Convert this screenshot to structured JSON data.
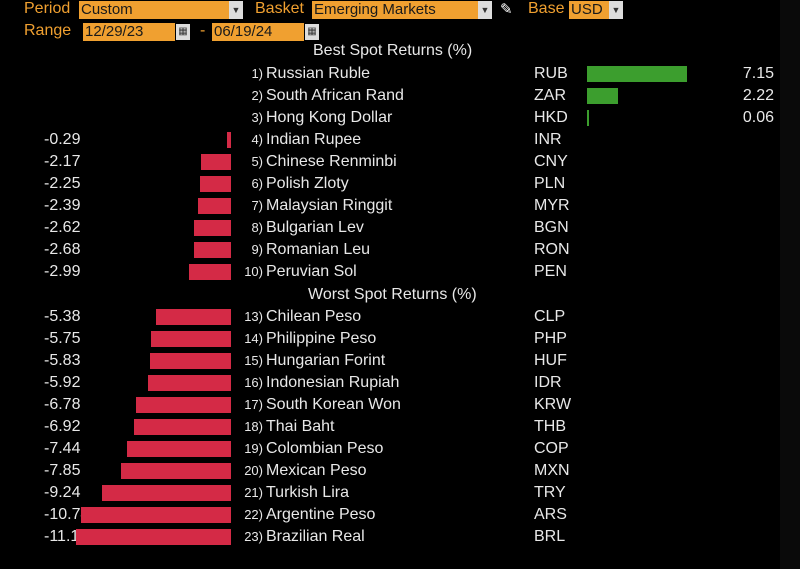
{
  "toolbar": {
    "period_label": "Period",
    "period_value": "Custom",
    "basket_label": "Basket",
    "basket_value": "Emerging Markets",
    "base_label": "Base",
    "base_value": "USD",
    "range_label": "Range",
    "range_start": "12/29/23",
    "range_sep": "-",
    "range_end": "06/19/24",
    "dropdown_icon": "dropdown-icon",
    "calendar_icon": "calendar-icon",
    "pencil_icon": "pencil-icon"
  },
  "best_header": "Best Spot Returns (%)",
  "worst_header": "Worst Spot Returns (%)",
  "colors": {
    "positive": "#3c9e2e",
    "negative": "#d42a46",
    "accent": "#f0a030"
  },
  "best": [
    {
      "rank": "1)",
      "name": "Russian Ruble",
      "code": "RUB",
      "value": 7.15,
      "label": "7.15"
    },
    {
      "rank": "2)",
      "name": "South African Rand",
      "code": "ZAR",
      "value": 2.22,
      "label": "2.22"
    },
    {
      "rank": "3)",
      "name": "Hong Kong Dollar",
      "code": "HKD",
      "value": 0.06,
      "label": "0.06"
    },
    {
      "rank": "4)",
      "name": "Indian Rupee",
      "code": "INR",
      "value": -0.29,
      "label": "-0.29"
    },
    {
      "rank": "5)",
      "name": "Chinese Renminbi",
      "code": "CNY",
      "value": -2.17,
      "label": "-2.17"
    },
    {
      "rank": "6)",
      "name": "Polish Zloty",
      "code": "PLN",
      "value": -2.25,
      "label": "-2.25"
    },
    {
      "rank": "7)",
      "name": "Malaysian Ringgit",
      "code": "MYR",
      "value": -2.39,
      "label": "-2.39"
    },
    {
      "rank": "8)",
      "name": "Bulgarian Lev",
      "code": "BGN",
      "value": -2.62,
      "label": "-2.62"
    },
    {
      "rank": "9)",
      "name": "Romanian Leu",
      "code": "RON",
      "value": -2.68,
      "label": "-2.68"
    },
    {
      "rank": "10)",
      "name": "Peruvian Sol",
      "code": "PEN",
      "value": -2.99,
      "label": "-2.99"
    }
  ],
  "worst": [
    {
      "rank": "13)",
      "name": "Chilean Peso",
      "code": "CLP",
      "value": -5.38,
      "label": "-5.38"
    },
    {
      "rank": "14)",
      "name": "Philippine Peso",
      "code": "PHP",
      "value": -5.75,
      "label": "-5.75"
    },
    {
      "rank": "15)",
      "name": "Hungarian Forint",
      "code": "HUF",
      "value": -5.83,
      "label": "-5.83"
    },
    {
      "rank": "16)",
      "name": "Indonesian Rupiah",
      "code": "IDR",
      "value": -5.92,
      "label": "-5.92"
    },
    {
      "rank": "17)",
      "name": "South Korean Won",
      "code": "KRW",
      "value": -6.78,
      "label": "-6.78"
    },
    {
      "rank": "18)",
      "name": "Thai Baht",
      "code": "THB",
      "value": -6.92,
      "label": "-6.92"
    },
    {
      "rank": "19)",
      "name": "Colombian Peso",
      "code": "COP",
      "value": -7.44,
      "label": "-7.44"
    },
    {
      "rank": "20)",
      "name": "Mexican Peso",
      "code": "MXN",
      "value": -7.85,
      "label": "-7.85"
    },
    {
      "rank": "21)",
      "name": "Turkish Lira",
      "code": "TRY",
      "value": -9.24,
      "label": "-9.24"
    },
    {
      "rank": "22)",
      "name": "Argentine Peso",
      "code": "ARS",
      "value": -10.74,
      "label": "-10.74"
    },
    {
      "rank": "23)",
      "name": "Brazilian Real",
      "code": "BRL",
      "value": -11.11,
      "label": "-11.11"
    }
  ]
}
